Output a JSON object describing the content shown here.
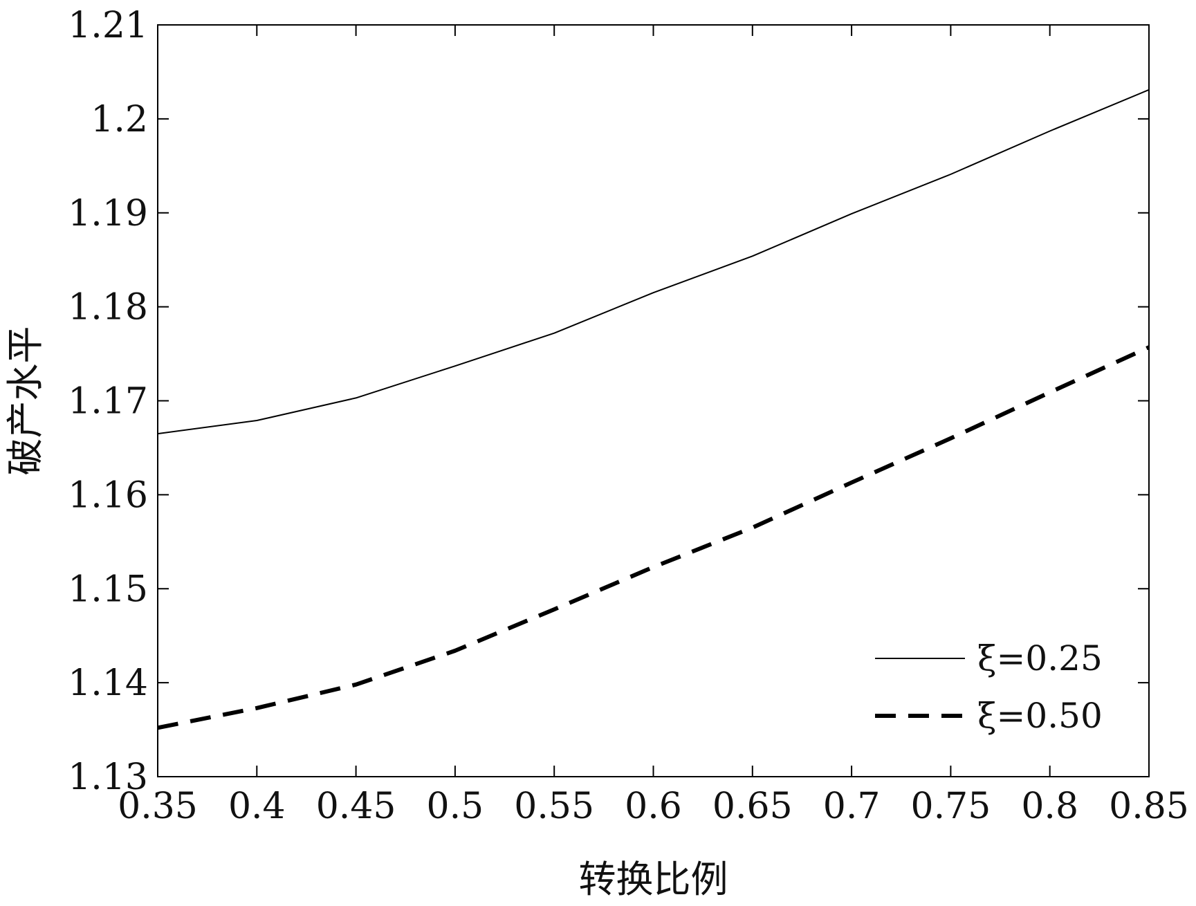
{
  "chart_data": {
    "type": "line",
    "title": "",
    "xlabel": "转换比例",
    "ylabel": "破产水平",
    "xlim": [
      0.35,
      0.85
    ],
    "ylim": [
      1.13,
      1.21
    ],
    "xticks": [
      0.35,
      0.4,
      0.45,
      0.5,
      0.55,
      0.6,
      0.65,
      0.7,
      0.75,
      0.8,
      0.85
    ],
    "xtick_labels": [
      "0.35",
      "0.4",
      "0.45",
      "0.5",
      "0.55",
      "0.6",
      "0.65",
      "0.7",
      "0.75",
      "0.8",
      "0.85"
    ],
    "yticks": [
      1.13,
      1.14,
      1.15,
      1.16,
      1.17,
      1.18,
      1.19,
      1.2,
      1.21
    ],
    "ytick_labels": [
      "1.13",
      "1.14",
      "1.15",
      "1.16",
      "1.17",
      "1.18",
      "1.19",
      "1.2",
      "1.21"
    ],
    "grid": false,
    "legend_position": "bottom-right",
    "x": [
      0.35,
      0.4,
      0.45,
      0.5,
      0.55,
      0.6,
      0.65,
      0.7,
      0.75,
      0.8,
      0.85
    ],
    "series": [
      {
        "name": "ξ=0.25",
        "style": "solid",
        "color": "#000000",
        "values": [
          1.1665,
          1.1679,
          1.1703,
          1.1737,
          1.1772,
          1.1815,
          1.1854,
          1.1899,
          1.1941,
          1.1987,
          1.2031
        ]
      },
      {
        "name": "ξ=0.50",
        "style": "dashed",
        "color": "#000000",
        "values": [
          1.1352,
          1.1373,
          1.1398,
          1.1434,
          1.1478,
          1.1523,
          1.1565,
          1.1613,
          1.166,
          1.1709,
          1.1757
        ]
      }
    ]
  }
}
